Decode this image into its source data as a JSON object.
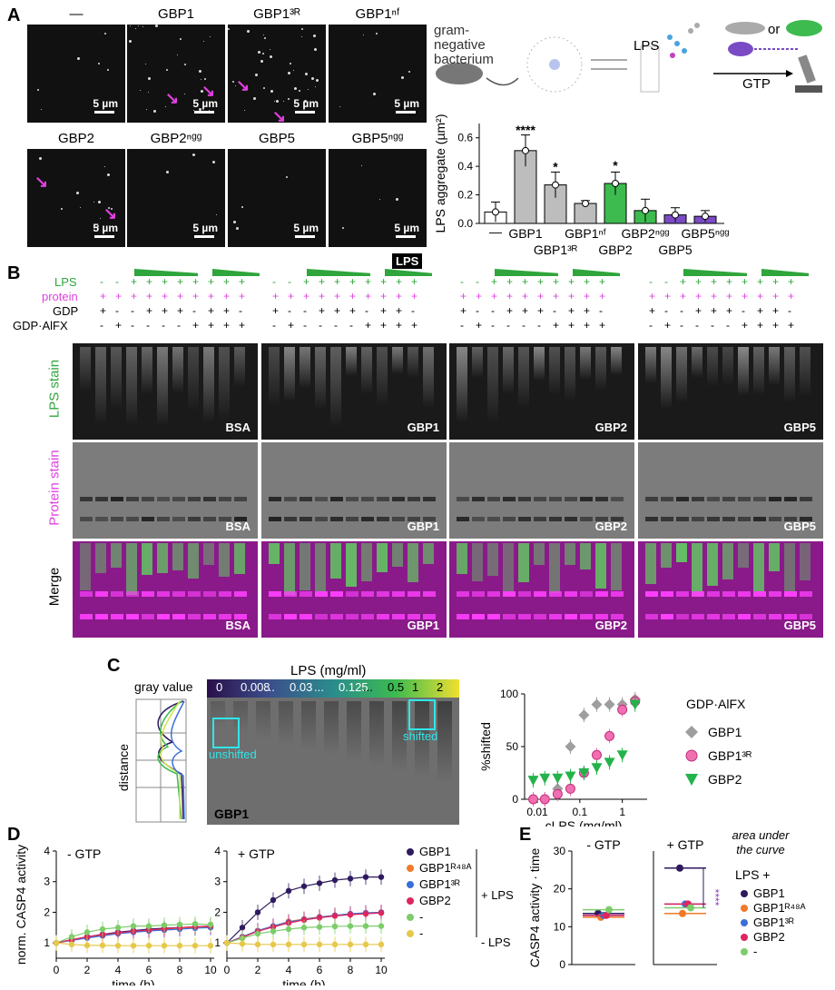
{
  "panels": {
    "a": "A",
    "b": "B",
    "c": "C",
    "d": "D",
    "e": "E"
  },
  "micrographs": {
    "titles": [
      "—",
      "GBP1",
      "GBP1³ᴿ",
      "GBP1ⁿᶠ",
      "GBP2",
      "GBP2ⁿᵍᵍ",
      "GBP5",
      "GBP5ⁿᵍᵍ"
    ],
    "scale": "5 µm",
    "stain_label": "LPS"
  },
  "schematic": {
    "bacterium": "gram-negative bacterium",
    "lps": "LPS",
    "or": "or",
    "gtp": "GTP"
  },
  "barplot": {
    "ylabel": "LPS aggregate (µm²)",
    "yticks": [
      "0.0",
      "0.2",
      "0.4",
      "0.6"
    ],
    "xlabels": [
      "—",
      "GBP1",
      "GBP1³ᴿ",
      "GBP1ⁿᶠ",
      "GBP2",
      "GBP2ⁿᵍᵍ",
      "GBP5",
      "GBP5ⁿᵍᵍ"
    ],
    "sig": [
      "****",
      "*",
      "*"
    ]
  },
  "gels": {
    "row_labels": [
      "LPS",
      "protein",
      "GDP",
      "GDP·AlFX"
    ],
    "stain_labels": [
      "LPS stain",
      "Protein stain",
      "Merge"
    ],
    "names": [
      "BSA",
      "GBP1",
      "GBP2",
      "GBP5"
    ]
  },
  "panel_c": {
    "lps_title": "LPS (mg/ml)",
    "conc": [
      "0",
      "0.008",
      "...",
      "0.03",
      "...",
      "0.125",
      "...",
      "0.5",
      "1",
      "2"
    ],
    "gray_value": "gray value",
    "distance": "distance",
    "unshifted": "unshifted",
    "shifted": "shifted",
    "gel_name": "GBP1",
    "legend_title": "GDP·AlFX",
    "legend": [
      "GBP1",
      "GBP1³ᴿ",
      "GBP2"
    ],
    "ylabel": "%shifted",
    "xlabel": "cLPS (mg/ml)",
    "yticks": [
      "0",
      "50",
      "100"
    ],
    "xticks": [
      "0.01",
      "0.1",
      "1"
    ]
  },
  "panel_d": {
    "ylabel": "norm. CASP4 activity",
    "xlabel": "time (h)",
    "left_title": "- GTP",
    "right_title": "+ GTP",
    "yticks": [
      "1",
      "2",
      "3",
      "4"
    ],
    "xticks": [
      "0",
      "2",
      "4",
      "6",
      "8",
      "10"
    ],
    "legend": [
      "GBP1",
      "GBP1ᴿ⁴⁸ᴬ",
      "GBP1³ᴿ",
      "GBP2",
      "-",
      "-"
    ],
    "plus_lps": "+ LPS",
    "minus_lps": "- LPS"
  },
  "panel_e": {
    "ylabel": "CASP4 activity · time",
    "left_title": "- GTP",
    "right_title": "+ GTP",
    "note": "area under the curve",
    "legend_title": "LPS +",
    "legend": [
      "GBP1",
      "GBP1ᴿ⁴⁸ᴬ",
      "GBP1³ᴿ",
      "GBP2",
      "-"
    ],
    "yticks": [
      "0",
      "10",
      "20",
      "30"
    ],
    "sig": "****"
  },
  "chart_data": [
    {
      "type": "bar",
      "title": "",
      "ylabel": "LPS aggregate (µm²)",
      "categories": [
        "—",
        "GBP1",
        "GBP1³ᴿ",
        "GBP1ⁿᶠ",
        "GBP2",
        "GBP2ⁿᵍᵍ",
        "GBP5",
        "GBP5ⁿᵍᵍ"
      ],
      "values": [
        0.08,
        0.51,
        0.27,
        0.14,
        0.28,
        0.09,
        0.06,
        0.05
      ],
      "errors": [
        0.07,
        0.11,
        0.09,
        0.02,
        0.08,
        0.08,
        0.05,
        0.04
      ],
      "colors": [
        "#ffffff",
        "#bdbdbd",
        "#bdbdbd",
        "#bdbdbd",
        "#3dbb4f",
        "#3dbb4f",
        "#7a4bc4",
        "#7a4bc4"
      ],
      "ylim": [
        0,
        0.7
      ]
    },
    {
      "type": "scatter",
      "xlabel": "cLPS (mg/ml)",
      "ylabel": "%shifted",
      "x": [
        0.008,
        0.015,
        0.03,
        0.06,
        0.125,
        0.25,
        0.5,
        1,
        2
      ],
      "series": [
        {
          "name": "GBP1",
          "color": "#9e9e9e",
          "values": [
            0,
            0,
            10,
            50,
            80,
            90,
            90,
            90,
            95
          ]
        },
        {
          "name": "GBP1³ᴿ",
          "color": "#f06fb0",
          "values": [
            0,
            0,
            5,
            10,
            25,
            42,
            60,
            85,
            93
          ]
        },
        {
          "name": "GBP2",
          "color": "#24b34b",
          "values": [
            18,
            20,
            20,
            22,
            25,
            30,
            35,
            42,
            90
          ]
        }
      ],
      "ylim": [
        0,
        100
      ]
    },
    {
      "type": "line",
      "title": "- GTP",
      "xlabel": "time (h)",
      "ylabel": "norm. CASP4 activity",
      "x": [
        0,
        1,
        2,
        3,
        4,
        5,
        6,
        7,
        8,
        9,
        10
      ],
      "series": [
        {
          "name": "GBP1 +LPS",
          "color": "#2e1a5e",
          "values": [
            1,
            1.1,
            1.2,
            1.28,
            1.35,
            1.4,
            1.45,
            1.48,
            1.5,
            1.52,
            1.55
          ]
        },
        {
          "name": "GBP1R48A +LPS",
          "color": "#f07a28",
          "values": [
            1,
            1.1,
            1.18,
            1.25,
            1.32,
            1.37,
            1.41,
            1.45,
            1.48,
            1.5,
            1.52
          ]
        },
        {
          "name": "GBP13R +LPS",
          "color": "#3a6fd8",
          "values": [
            1,
            1.08,
            1.16,
            1.23,
            1.3,
            1.35,
            1.39,
            1.42,
            1.45,
            1.48,
            1.5
          ]
        },
        {
          "name": "GBP2 +LPS",
          "color": "#e0245e",
          "values": [
            1,
            1.1,
            1.2,
            1.27,
            1.33,
            1.38,
            1.42,
            1.46,
            1.5,
            1.53,
            1.55
          ]
        },
        {
          "name": "- +LPS",
          "color": "#7ccd6a",
          "values": [
            1,
            1.2,
            1.35,
            1.45,
            1.5,
            1.55,
            1.55,
            1.58,
            1.6,
            1.62,
            1.6
          ]
        },
        {
          "name": "- -LPS",
          "color": "#e6c84a",
          "values": [
            1,
            0.95,
            0.92,
            0.92,
            0.91,
            0.91,
            0.91,
            0.91,
            0.91,
            0.91,
            0.91
          ]
        }
      ],
      "ylim": [
        0.5,
        4
      ]
    },
    {
      "type": "line",
      "title": "+ GTP",
      "xlabel": "time (h)",
      "ylabel": "norm. CASP4 activity",
      "x": [
        0,
        1,
        2,
        3,
        4,
        5,
        6,
        7,
        8,
        9,
        10
      ],
      "series": [
        {
          "name": "GBP1 +LPS",
          "color": "#2e1a5e",
          "values": [
            1,
            1.5,
            2.0,
            2.4,
            2.7,
            2.85,
            2.95,
            3.05,
            3.1,
            3.15,
            3.15
          ]
        },
        {
          "name": "GBP1R48A +LPS",
          "color": "#f07a28",
          "values": [
            1,
            1.2,
            1.4,
            1.55,
            1.7,
            1.78,
            1.85,
            1.9,
            1.95,
            1.98,
            2.0
          ]
        },
        {
          "name": "GBP13R +LPS",
          "color": "#3a6fd8",
          "values": [
            1,
            1.2,
            1.4,
            1.55,
            1.68,
            1.77,
            1.84,
            1.9,
            1.95,
            1.98,
            2.0
          ]
        },
        {
          "name": "GBP2 +LPS",
          "color": "#e0245e",
          "values": [
            1,
            1.18,
            1.38,
            1.52,
            1.65,
            1.75,
            1.82,
            1.88,
            1.92,
            1.95,
            1.98
          ]
        },
        {
          "name": "- +LPS",
          "color": "#7ccd6a",
          "values": [
            1,
            1.15,
            1.3,
            1.38,
            1.45,
            1.5,
            1.52,
            1.54,
            1.55,
            1.55,
            1.55
          ]
        },
        {
          "name": "- -LPS",
          "color": "#e6c84a",
          "values": [
            1,
            0.97,
            0.95,
            0.95,
            0.95,
            0.95,
            0.95,
            0.95,
            0.95,
            0.95,
            0.95
          ]
        }
      ],
      "ylim": [
        0.5,
        4
      ]
    },
    {
      "type": "scatter",
      "title": "area under the curve",
      "ylabel": "CASP4 activity · time",
      "categories": [
        "- GTP",
        "+ GTP"
      ],
      "series": [
        {
          "name": "GBP1",
          "color": "#2e1a5e",
          "values": [
            13.5,
            25.5
          ]
        },
        {
          "name": "GBP1R48A",
          "color": "#f07a28",
          "values": [
            12.5,
            13.5
          ]
        },
        {
          "name": "GBP13R",
          "color": "#3a6fd8",
          "values": [
            13.0,
            16.0
          ]
        },
        {
          "name": "GBP2",
          "color": "#e0245e",
          "values": [
            13.0,
            16.0
          ]
        },
        {
          "name": "-",
          "color": "#7ccd6a",
          "values": [
            14.5,
            15.0
          ]
        }
      ],
      "ylim": [
        0,
        30
      ]
    }
  ]
}
